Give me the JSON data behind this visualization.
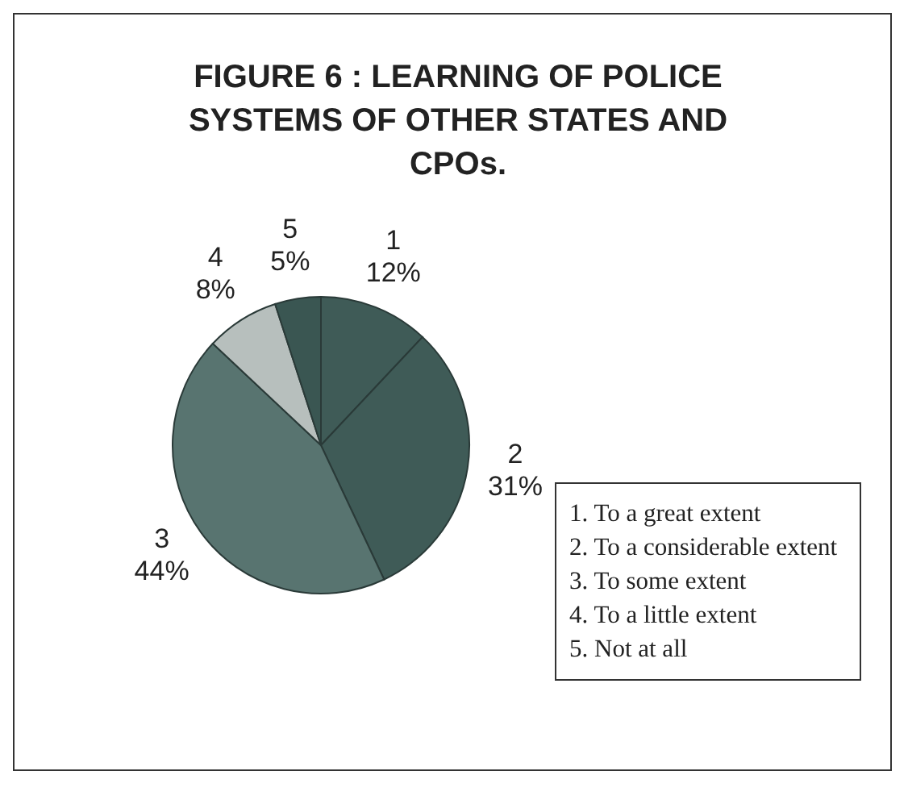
{
  "chart_data": {
    "type": "pie",
    "title": "FIGURE 6 : LEARNING OF POLICE SYSTEMS OF OTHER STATES AND CPOs.",
    "categories": [
      "1",
      "2",
      "3",
      "4",
      "5"
    ],
    "values": [
      12,
      31,
      44,
      8,
      5
    ],
    "value_labels": [
      "12%",
      "31%",
      "44%",
      "8%",
      "5%"
    ],
    "colors": [
      "#3f5b57",
      "#3f5b57",
      "#587470",
      "#b7bfbd",
      "#3a5652"
    ],
    "annotations": [
      "1. To a great extent",
      "2. To a considerable extent",
      "3. To some extent",
      "4. To a little extent",
      "5. Not at all"
    ]
  }
}
